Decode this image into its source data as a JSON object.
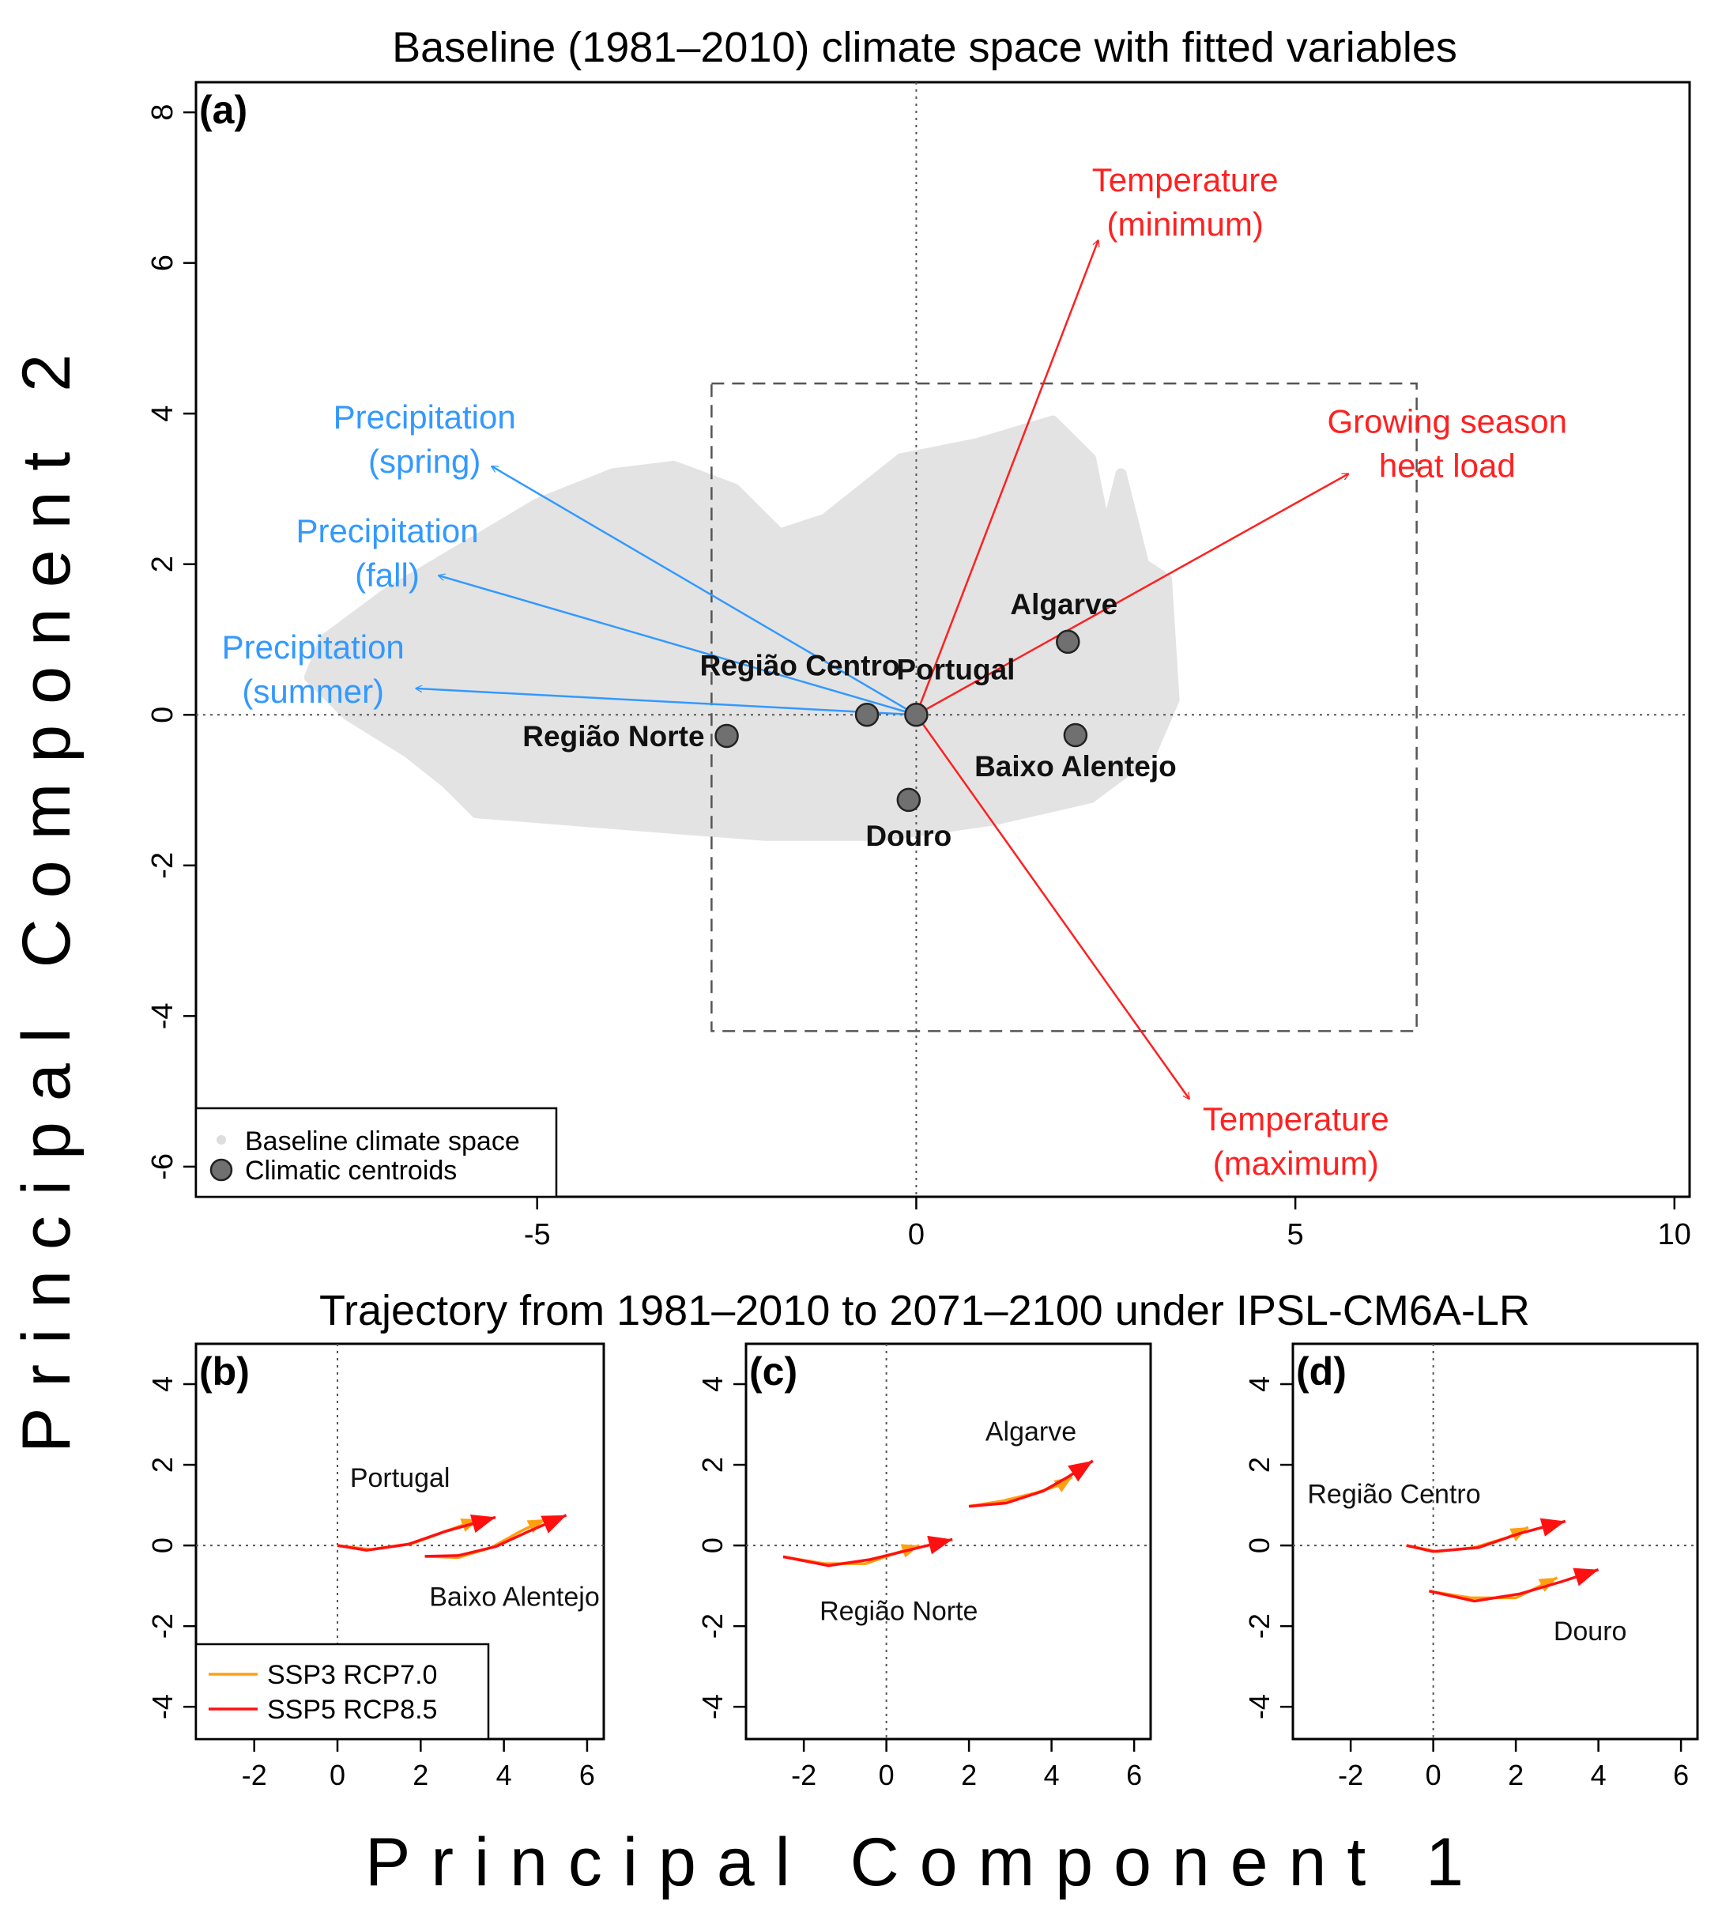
{
  "figure": {
    "title_top": "Baseline (1981–2010) climate space with fitted variables",
    "title_bottom": "Trajectory from 1981–2010 to 2071–2100 under IPSL-CM6A-LR",
    "xlabel": "Principal Component 1",
    "ylabel": "Principal Component 2"
  },
  "colors": {
    "precip": "#3399ff",
    "temp": "#ff2020",
    "cloud": "#e3e3e3",
    "centroid": "#707070",
    "ssp3": "#ffa010",
    "ssp5": "#ff1010"
  },
  "chart_data": [
    {
      "panel": "(a)",
      "type": "scatter",
      "title": "Baseline (1981–2010) climate space with fitted variables",
      "xlim": [
        -9.5,
        10.2
      ],
      "ylim": [
        -6.4,
        8.4
      ],
      "xticks": [
        -5,
        0,
        5,
        10
      ],
      "yticks": [
        -6,
        -4,
        -2,
        0,
        2,
        4,
        6,
        8
      ],
      "zoom_box": {
        "x": [
          -2.7,
          6.6
        ],
        "y": [
          -4.2,
          4.4
        ]
      },
      "centroids": [
        {
          "name": "Portugal",
          "x": 0.0,
          "y": 0.0
        },
        {
          "name": "Região Centro",
          "x": -0.65,
          "y": 0.0
        },
        {
          "name": "Região Norte",
          "x": -2.5,
          "y": -0.28
        },
        {
          "name": "Algarve",
          "x": 2.0,
          "y": 0.97
        },
        {
          "name": "Baixo Alentejo",
          "x": 2.1,
          "y": -0.27
        },
        {
          "name": "Douro",
          "x": -0.1,
          "y": -1.13
        }
      ],
      "vectors": [
        {
          "group": "precip",
          "label": [
            "Precipitation",
            "(spring)"
          ],
          "x": -5.6,
          "y": 3.3
        },
        {
          "group": "precip",
          "label": [
            "Precipitation",
            "(fall)"
          ],
          "x": -6.3,
          "y": 1.85
        },
        {
          "group": "precip",
          "label": [
            "Precipitation",
            "(summer)"
          ],
          "x": -6.6,
          "y": 0.35
        },
        {
          "group": "temp",
          "label": [
            "Temperature",
            "(minimum)"
          ],
          "x": 2.4,
          "y": 6.3
        },
        {
          "group": "temp",
          "label": [
            "Growing season",
            "heat load"
          ],
          "x": 5.7,
          "y": 3.2
        },
        {
          "group": "temp",
          "label": [
            "Temperature",
            "(maximum)"
          ],
          "x": 3.6,
          "y": -5.1
        }
      ],
      "legend": [
        "Baseline climate space",
        "Climatic centroids"
      ]
    },
    {
      "panel": "(b)",
      "type": "line",
      "xlim": [
        -3.4,
        6.4
      ],
      "ylim": [
        -4.8,
        5.0
      ],
      "xticks": [
        -2,
        0,
        2,
        4,
        6
      ],
      "yticks": [
        -4,
        -2,
        0,
        2,
        4
      ],
      "labels": [
        "Portugal",
        "Baixo Alentejo"
      ],
      "series": [
        {
          "name": "SSP3 RCP7.0",
          "color": "ssp3",
          "region": "Portugal",
          "points": [
            [
              0,
              0
            ],
            [
              0.8,
              -0.1
            ],
            [
              1.8,
              0.05
            ],
            [
              2.6,
              0.35
            ],
            [
              3.4,
              0.65
            ]
          ]
        },
        {
          "name": "SSP5 RCP8.5",
          "color": "ssp5",
          "region": "Portugal",
          "points": [
            [
              0,
              0
            ],
            [
              0.7,
              -0.12
            ],
            [
              1.7,
              0.03
            ],
            [
              2.6,
              0.35
            ],
            [
              3.8,
              0.7
            ]
          ]
        },
        {
          "name": "SSP3 RCP7.0",
          "color": "ssp3",
          "region": "Baixo Alentejo",
          "points": [
            [
              2.1,
              -0.27
            ],
            [
              2.9,
              -0.3
            ],
            [
              3.7,
              -0.05
            ],
            [
              4.4,
              0.35
            ],
            [
              5.0,
              0.65
            ]
          ]
        },
        {
          "name": "SSP5 RCP8.5",
          "color": "ssp5",
          "region": "Baixo Alentejo",
          "points": [
            [
              2.1,
              -0.27
            ],
            [
              2.9,
              -0.25
            ],
            [
              3.8,
              -0.03
            ],
            [
              4.6,
              0.35
            ],
            [
              5.5,
              0.75
            ]
          ]
        }
      ],
      "legend": [
        "SSP3 RCP7.0",
        "SSP5 RCP8.5"
      ]
    },
    {
      "panel": "(c)",
      "type": "line",
      "xlim": [
        -3.4,
        6.4
      ],
      "ylim": [
        -4.8,
        5.0
      ],
      "xticks": [
        -2,
        0,
        2,
        4,
        6
      ],
      "yticks": [
        -4,
        -2,
        0,
        2,
        4
      ],
      "labels": [
        "Algarve",
        "Região Norte"
      ],
      "series": [
        {
          "name": "SSP3 RCP7.0",
          "color": "ssp3",
          "region": "Região Norte",
          "points": [
            [
              -2.5,
              -0.28
            ],
            [
              -1.5,
              -0.45
            ],
            [
              -0.5,
              -0.45
            ],
            [
              0.2,
              -0.2
            ],
            [
              0.8,
              0.0
            ]
          ]
        },
        {
          "name": "SSP5 RCP8.5",
          "color": "ssp5",
          "region": "Região Norte",
          "points": [
            [
              -2.5,
              -0.28
            ],
            [
              -1.4,
              -0.5
            ],
            [
              -0.4,
              -0.35
            ],
            [
              0.6,
              -0.1
            ],
            [
              1.6,
              0.15
            ]
          ]
        },
        {
          "name": "SSP3 RCP7.0",
          "color": "ssp3",
          "region": "Algarve",
          "points": [
            [
              2.0,
              0.97
            ],
            [
              2.8,
              1.1
            ],
            [
              3.6,
              1.3
            ],
            [
              4.2,
              1.5
            ],
            [
              4.5,
              1.7
            ]
          ]
        },
        {
          "name": "SSP5 RCP8.5",
          "color": "ssp5",
          "region": "Algarve",
          "points": [
            [
              2.0,
              0.97
            ],
            [
              2.9,
              1.05
            ],
            [
              3.8,
              1.35
            ],
            [
              4.4,
              1.7
            ],
            [
              5.0,
              2.1
            ]
          ]
        }
      ],
      "legend": []
    },
    {
      "panel": "(d)",
      "type": "line",
      "xlim": [
        -3.4,
        6.4
      ],
      "ylim": [
        -4.8,
        5.0
      ],
      "xticks": [
        -2,
        0,
        2,
        4,
        6
      ],
      "yticks": [
        -4,
        -2,
        0,
        2,
        4
      ],
      "labels": [
        "Região Centro",
        "Douro"
      ],
      "series": [
        {
          "name": "SSP3 RCP7.0",
          "color": "ssp3",
          "region": "Região Centro",
          "points": [
            [
              -0.65,
              0.0
            ],
            [
              0.1,
              -0.15
            ],
            [
              1.0,
              -0.05
            ],
            [
              1.8,
              0.2
            ],
            [
              2.3,
              0.45
            ]
          ]
        },
        {
          "name": "SSP5 RCP8.5",
          "color": "ssp5",
          "region": "Região Centro",
          "points": [
            [
              -0.65,
              0.0
            ],
            [
              0.0,
              -0.15
            ],
            [
              1.1,
              -0.05
            ],
            [
              2.1,
              0.3
            ],
            [
              3.2,
              0.6
            ]
          ]
        },
        {
          "name": "SSP3 RCP7.0",
          "color": "ssp3",
          "region": "Douro",
          "points": [
            [
              -0.1,
              -1.13
            ],
            [
              0.9,
              -1.3
            ],
            [
              2.0,
              -1.3
            ],
            [
              2.6,
              -1.0
            ],
            [
              3.0,
              -0.8
            ]
          ]
        },
        {
          "name": "SSP5 RCP8.5",
          "color": "ssp5",
          "region": "Douro",
          "points": [
            [
              -0.1,
              -1.13
            ],
            [
              1.0,
              -1.38
            ],
            [
              2.1,
              -1.2
            ],
            [
              3.1,
              -0.9
            ],
            [
              4.0,
              -0.6
            ]
          ]
        }
      ],
      "legend": []
    }
  ]
}
